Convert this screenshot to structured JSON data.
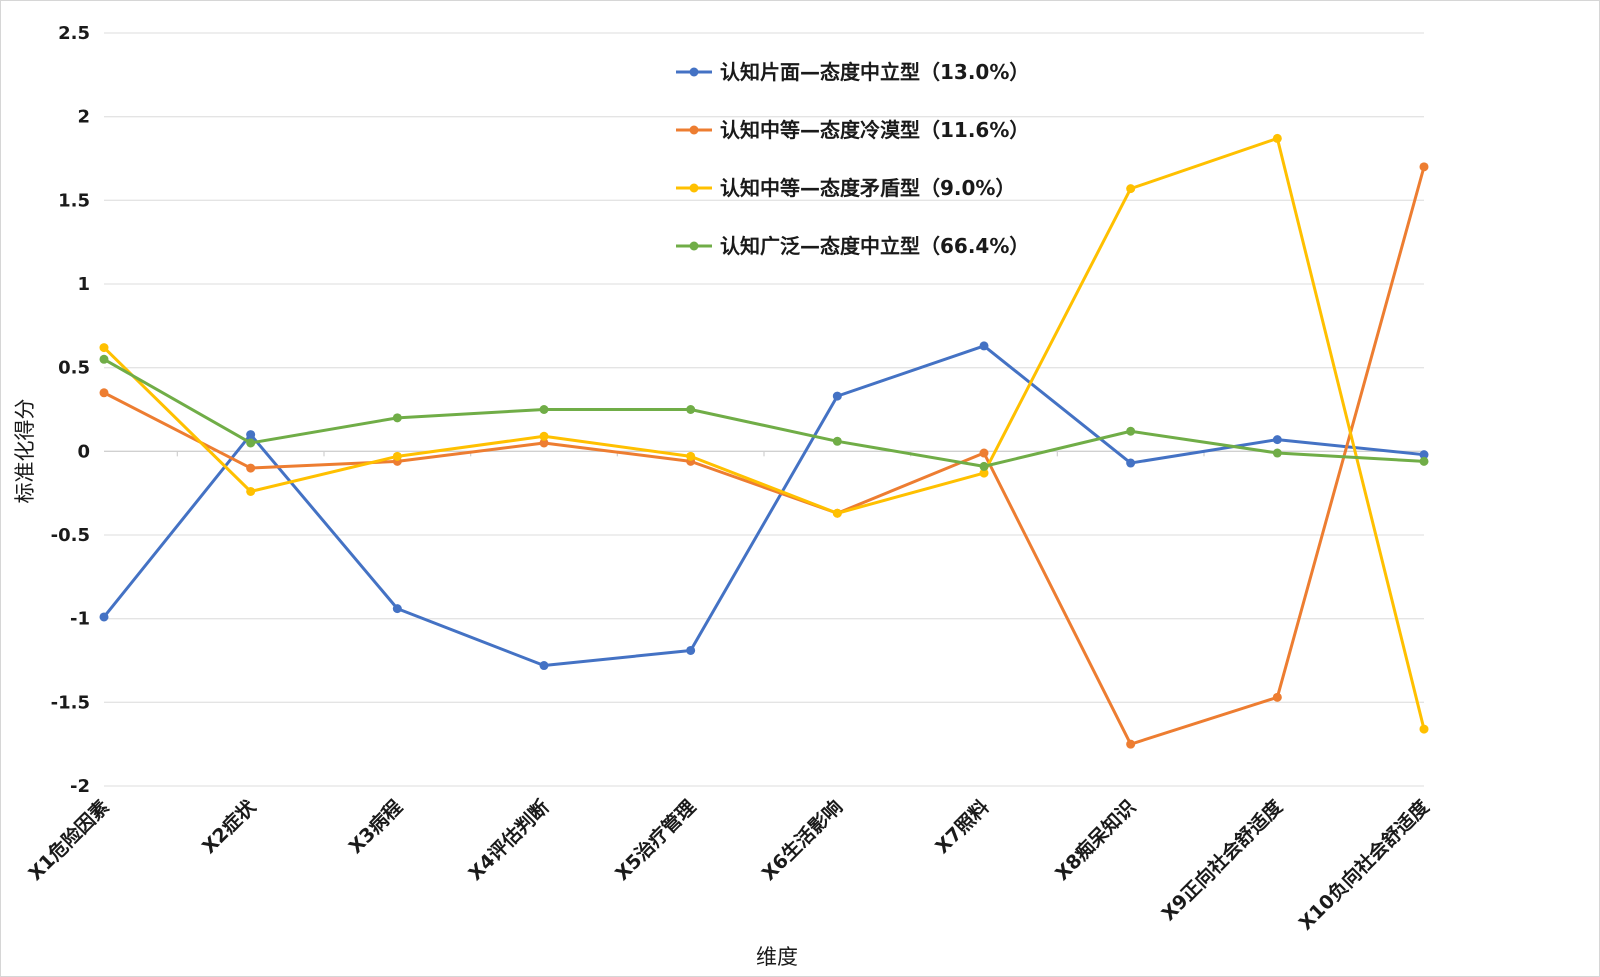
{
  "chart_data": {
    "type": "line",
    "categories": [
      "X1危险因素",
      "X2症状",
      "X3病程",
      "X4评估判断",
      "X5治疗管理",
      "X6生活影响",
      "X7照料",
      "X8痴呆知识",
      "X9正向社会舒适度",
      "X10负向社会舒适度"
    ],
    "xlabel": "维度",
    "ylabel": "标准化得分",
    "ylim": [
      -2,
      2.5
    ],
    "yticks": [
      2.5,
      2,
      1.5,
      1,
      0.5,
      0,
      -0.5,
      -1,
      -1.5,
      -2
    ],
    "ytick_labels": [
      "2.5",
      "2",
      "1.5",
      "1",
      "0.5",
      "0",
      "-0.5",
      "-1",
      "-1.5",
      "-2"
    ],
    "grid": true,
    "legend_position": "top-center",
    "series": [
      {
        "name": "认知片面—态度中立型（13.0%）",
        "color": "#4472C4",
        "values": [
          -0.99,
          0.1,
          -0.94,
          -1.28,
          -1.19,
          0.33,
          0.63,
          -0.07,
          0.07,
          -0.02
        ]
      },
      {
        "name": "认知中等—态度冷漠型（11.6%）",
        "color": "#ED7D31",
        "values": [
          0.35,
          -0.1,
          -0.06,
          0.05,
          -0.06,
          -0.37,
          -0.01,
          -1.75,
          -1.47,
          1.7
        ]
      },
      {
        "name": "认知中等—态度矛盾型（9.0%）",
        "color": "#FFC000",
        "values": [
          0.62,
          -0.24,
          -0.03,
          0.09,
          -0.03,
          -0.37,
          -0.13,
          1.57,
          1.87,
          -1.66
        ]
      },
      {
        "name": "认知广泛—态度中立型（66.4%）",
        "color": "#70AD47",
        "values": [
          0.55,
          0.05,
          0.2,
          0.25,
          0.25,
          0.06,
          -0.09,
          0.12,
          -0.01,
          -0.06
        ]
      }
    ]
  }
}
